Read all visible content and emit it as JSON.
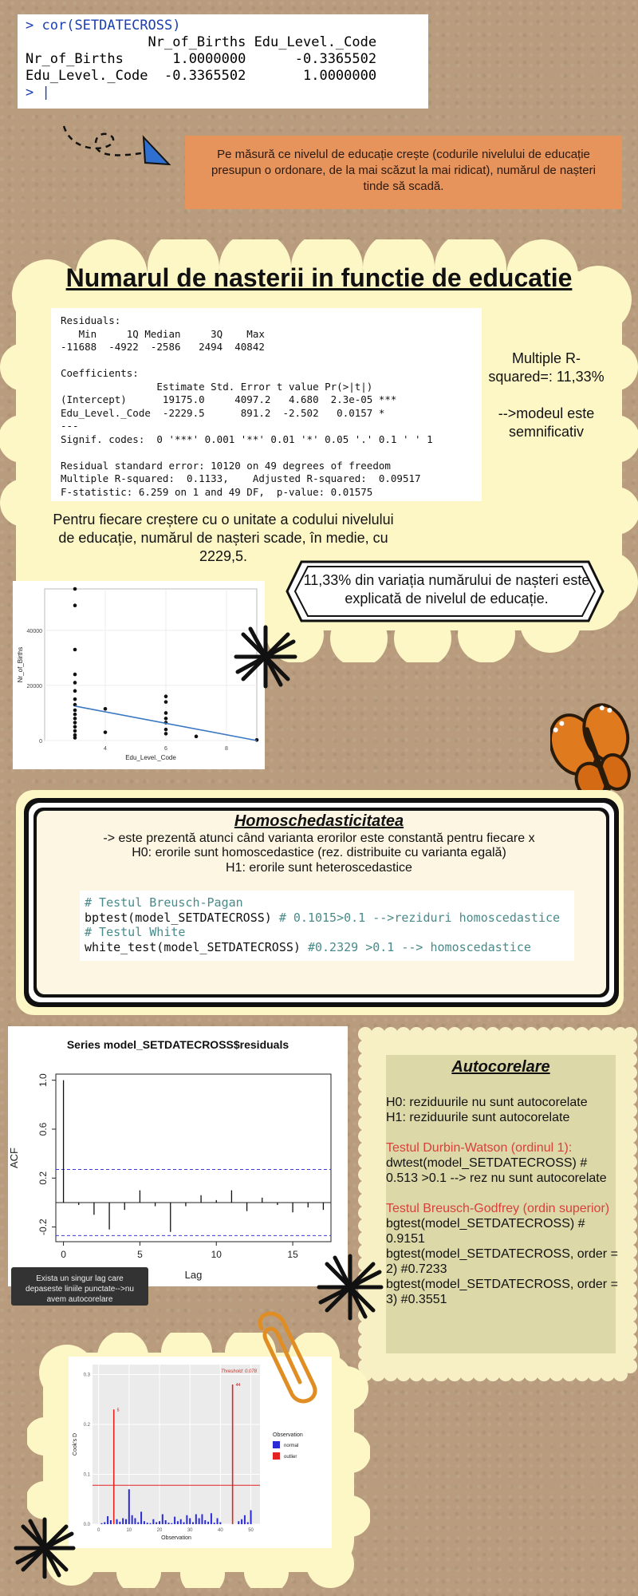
{
  "console": {
    "command_prompt": ">",
    "command": "cor(SETDATECROSS)",
    "header": "               Nr_of_Births Edu_Level._Code",
    "row1": "Nr_of_Births      1.0000000      -0.3365502",
    "row2": "Edu_Level._Code  -0.3365502       1.0000000",
    "end_prompt": "> |"
  },
  "orange_note": "Pe măsură ce nivelul de educație crește (codurile nivelului de educație presupun o ordonare, de la mai scăzut la mai ridicat), numărul de nașteri tinde să scadă.",
  "section1": {
    "title": "Numarul de nasterii in functie de educatie",
    "regression_output": [
      "Residuals:",
      "   Min     1Q Median     3Q    Max",
      "-11688  -4922  -2586   2494  40842",
      "",
      "Coefficients:",
      "                Estimate Std. Error t value Pr(>|t|)",
      "(Intercept)      19175.0     4097.2   4.680  2.3e-05 ***",
      "Edu_Level._Code  -2229.5      891.2  -2.502   0.0157 *",
      "---",
      "Signif. codes:  0 '***' 0.001 '**' 0.01 '*' 0.05 '.' 0.1 ' ' 1",
      "",
      "Residual standard error: 10120 on 49 degrees of freedom",
      "Multiple R-squared:  0.1133,    Adjusted R-squared:  0.09517",
      "F-statistic: 6.259 on 1 and 49 DF,  p-value: 0.01575"
    ],
    "r2_side": "Multiple R-squared=: 11,33%",
    "significance_note": "-->modeul este semnificativ",
    "interpretation": "Pentru fiecare creștere cu o unitate a codului nivelului de educație, numărul de nașteri scade, în medie, cu 2229,5.",
    "ribbon_text": "11,33% din variația numărului de nașteri este explicată de nivelul de educație."
  },
  "homo": {
    "title": "Homoschedasticitatea",
    "line1": "-> este prezentă atunci când varianta erorilor este constantă pentru fiecare x",
    "line2": "H0: erorile sunt homoscedastice (rez. distribuite cu varianta egală)",
    "line3": "H1: erorile sunt heteroscedastice",
    "code_comment1": "# Testul Breusch-Pagan",
    "code_line1": "bptest(model_SETDATECROSS)",
    "code_note1": " # 0.1015>0.1 -->reziduri homoscedastice",
    "code_comment2": "# Testul White",
    "code_line2": "white_test(model_SETDATECROSS)",
    "code_note2": " #0.2329 >0.1 --> homoscedastice"
  },
  "acf_note": "Exista un singur lag care depaseste liniile punctate-->nu avem autocorelare",
  "auto": {
    "title": "Autocorelare",
    "h0": "H0: reziduurile nu sunt autocorelate",
    "h1": "H1: reziduurile sunt autocorelate",
    "dw_title": "Testul Durbin-Watson (ordinul 1):",
    "dw_body": "dwtest(model_SETDATECROSS) # 0.513 >0.1 --> rez nu sunt autocorelate",
    "bg_title": "Testul Breusch-Godfrey (ordin superior)",
    "bg_line1": "bgtest(model_SETDATECROSS) # 0.9151",
    "bg_line2": "bgtest(model_SETDATECROSS, order = 2) #0.7233",
    "bg_line3": "bgtest(model_SETDATECROSS, order = 3) #0.3551"
  },
  "chart_data": [
    {
      "type": "scatter",
      "xlabel": "Edu_Level._Code",
      "ylabel": "Nr_of_Births",
      "x_ticks": [
        "4",
        "6",
        "8"
      ],
      "y_ticks": [
        "0",
        "20000",
        "40000"
      ],
      "xlim": [
        2,
        9
      ],
      "ylim": [
        0,
        55000
      ],
      "points": [
        {
          "x": 3,
          "y": 55000
        },
        {
          "x": 3,
          "y": 49000
        },
        {
          "x": 3,
          "y": 33000
        },
        {
          "x": 3,
          "y": 24000
        },
        {
          "x": 3,
          "y": 21000
        },
        {
          "x": 3,
          "y": 18000
        },
        {
          "x": 3,
          "y": 15000
        },
        {
          "x": 3,
          "y": 13000
        },
        {
          "x": 3,
          "y": 11000
        },
        {
          "x": 3,
          "y": 9500
        },
        {
          "x": 3,
          "y": 8000
        },
        {
          "x": 3,
          "y": 6500
        },
        {
          "x": 3,
          "y": 5000
        },
        {
          "x": 3,
          "y": 3500
        },
        {
          "x": 3,
          "y": 2000
        },
        {
          "x": 3,
          "y": 1000
        },
        {
          "x": 4,
          "y": 11500
        },
        {
          "x": 4,
          "y": 3000
        },
        {
          "x": 6,
          "y": 16000
        },
        {
          "x": 6,
          "y": 14000
        },
        {
          "x": 6,
          "y": 10000
        },
        {
          "x": 6,
          "y": 8000
        },
        {
          "x": 6,
          "y": 6500
        },
        {
          "x": 6,
          "y": 4000
        },
        {
          "x": 6,
          "y": 2500
        },
        {
          "x": 7,
          "y": 1500
        },
        {
          "x": 9,
          "y": 200
        }
      ],
      "fit_line": {
        "x": [
          3,
          9
        ],
        "y": [
          12500,
          0
        ]
      },
      "line_color": "#3a78c2"
    },
    {
      "type": "bar",
      "title": "Series  model_SETDATECROSS$residuals",
      "xlabel": "Lag",
      "ylabel": "ACF",
      "x_ticks": [
        "0",
        "5",
        "10",
        "15"
      ],
      "y_ticks": [
        "-0.2",
        "0.2",
        "0.6",
        "1.0"
      ],
      "xlim": [
        -0.5,
        17.5
      ],
      "ylim": [
        -0.32,
        1.05
      ],
      "lags": [
        0,
        1,
        2,
        3,
        4,
        5,
        6,
        7,
        8,
        9,
        10,
        11,
        12,
        13,
        14,
        15,
        16,
        17
      ],
      "values": [
        1.0,
        -0.02,
        -0.1,
        -0.22,
        -0.06,
        0.1,
        -0.03,
        -0.24,
        -0.03,
        0.06,
        0.02,
        0.1,
        -0.07,
        0.04,
        -0.02,
        -0.08,
        -0.04,
        -0.06
      ],
      "conf_band": [
        0.27,
        -0.27
      ]
    },
    {
      "type": "bar",
      "title": "Threshold: 0.078",
      "xlabel": "Observation",
      "ylabel": "Cook's D",
      "x_ticks": [
        "0",
        "10",
        "20",
        "30",
        "40",
        "50"
      ],
      "y_ticks": [
        "0.0",
        "0.1",
        "0.2",
        "0.3"
      ],
      "xlim": [
        -2,
        53
      ],
      "ylim": [
        0,
        0.32
      ],
      "threshold": 0.078,
      "legend_title": "Observation",
      "legend_items": [
        "normal",
        "outlier"
      ],
      "colors": {
        "normal": "#2b2bd6",
        "outlier": "#e32222"
      },
      "bars": [
        {
          "x": 1,
          "v": 0.002
        },
        {
          "x": 2,
          "v": 0.004
        },
        {
          "x": 3,
          "v": 0.016
        },
        {
          "x": 4,
          "v": 0.008
        },
        {
          "x": 5,
          "v": 0.23,
          "out": true
        },
        {
          "x": 6,
          "v": 0.01
        },
        {
          "x": 7,
          "v": 0.005
        },
        {
          "x": 8,
          "v": 0.012
        },
        {
          "x": 9,
          "v": 0.01
        },
        {
          "x": 10,
          "v": 0.07
        },
        {
          "x": 11,
          "v": 0.018
        },
        {
          "x": 12,
          "v": 0.012
        },
        {
          "x": 13,
          "v": 0.004
        },
        {
          "x": 14,
          "v": 0.025
        },
        {
          "x": 15,
          "v": 0.006
        },
        {
          "x": 16,
          "v": 0.003
        },
        {
          "x": 17,
          "v": 0.002
        },
        {
          "x": 18,
          "v": 0.01
        },
        {
          "x": 19,
          "v": 0.004
        },
        {
          "x": 20,
          "v": 0.006
        },
        {
          "x": 21,
          "v": 0.02
        },
        {
          "x": 22,
          "v": 0.008
        },
        {
          "x": 23,
          "v": 0.003
        },
        {
          "x": 24,
          "v": 0.002
        },
        {
          "x": 25,
          "v": 0.015
        },
        {
          "x": 26,
          "v": 0.006
        },
        {
          "x": 27,
          "v": 0.01
        },
        {
          "x": 28,
          "v": 0.004
        },
        {
          "x": 29,
          "v": 0.018
        },
        {
          "x": 30,
          "v": 0.012
        },
        {
          "x": 31,
          "v": 0.004
        },
        {
          "x": 32,
          "v": 0.02
        },
        {
          "x": 33,
          "v": 0.012
        },
        {
          "x": 34,
          "v": 0.02
        },
        {
          "x": 35,
          "v": 0.008
        },
        {
          "x": 36,
          "v": 0.005
        },
        {
          "x": 37,
          "v": 0.022
        },
        {
          "x": 38,
          "v": 0.003
        },
        {
          "x": 39,
          "v": 0.012
        },
        {
          "x": 40,
          "v": 0.004
        },
        {
          "x": 44,
          "v": 0.28,
          "out": true
        },
        {
          "x": 46,
          "v": 0.006
        },
        {
          "x": 47,
          "v": 0.01
        },
        {
          "x": 48,
          "v": 0.018
        },
        {
          "x": 49,
          "v": 0.004
        },
        {
          "x": 50,
          "v": 0.028
        }
      ]
    }
  ]
}
